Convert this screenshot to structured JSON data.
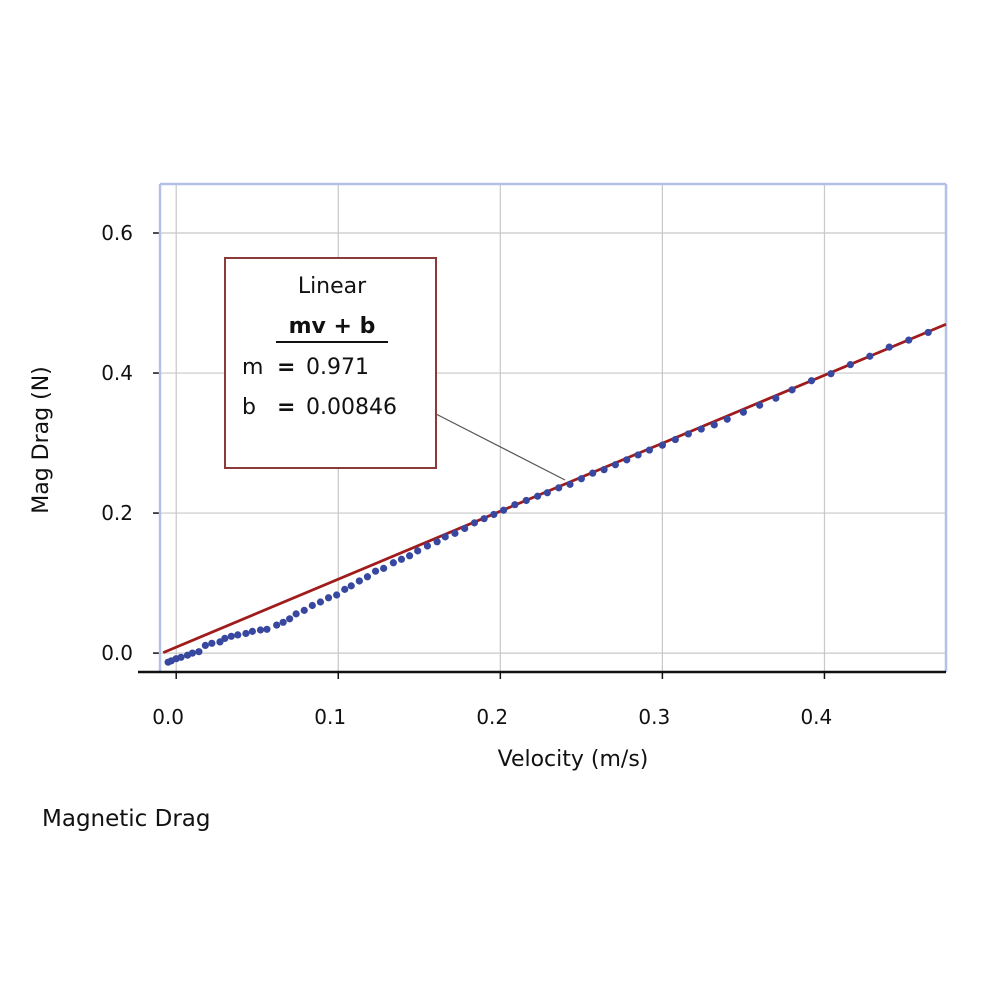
{
  "caption": "Magnetic Drag",
  "chart_data": {
    "type": "scatter",
    "xlabel": "Velocity (m/s)",
    "ylabel": "Mag Drag (N)",
    "xlim": [
      -0.01,
      0.475
    ],
    "ylim": [
      -0.027,
      0.67
    ],
    "xticks": [
      {
        "value": 0.0,
        "label": "0.0"
      },
      {
        "value": 0.1,
        "label": "0.1"
      },
      {
        "value": 0.2,
        "label": "0.2"
      },
      {
        "value": 0.3,
        "label": "0.3"
      },
      {
        "value": 0.4,
        "label": "0.4"
      }
    ],
    "yticks": [
      {
        "value": 0.0,
        "label": "0.0"
      },
      {
        "value": 0.2,
        "label": "0.2"
      },
      {
        "value": 0.4,
        "label": "0.4"
      },
      {
        "value": 0.6,
        "label": "0.6"
      }
    ],
    "grid": true,
    "points": [
      [
        -0.005,
        -0.013
      ],
      [
        -0.003,
        -0.011
      ],
      [
        0.0,
        -0.008
      ],
      [
        0.003,
        -0.006
      ],
      [
        0.007,
        -0.003
      ],
      [
        0.01,
        0.0
      ],
      [
        0.014,
        0.002
      ],
      [
        0.018,
        0.011
      ],
      [
        0.022,
        0.014
      ],
      [
        0.027,
        0.016
      ],
      [
        0.03,
        0.021
      ],
      [
        0.034,
        0.024
      ],
      [
        0.038,
        0.026
      ],
      [
        0.043,
        0.028
      ],
      [
        0.047,
        0.031
      ],
      [
        0.052,
        0.033
      ],
      [
        0.056,
        0.034
      ],
      [
        0.062,
        0.04
      ],
      [
        0.066,
        0.044
      ],
      [
        0.07,
        0.049
      ],
      [
        0.074,
        0.056
      ],
      [
        0.079,
        0.061
      ],
      [
        0.084,
        0.068
      ],
      [
        0.089,
        0.073
      ],
      [
        0.094,
        0.079
      ],
      [
        0.099,
        0.083
      ],
      [
        0.104,
        0.091
      ],
      [
        0.108,
        0.096
      ],
      [
        0.113,
        0.103
      ],
      [
        0.118,
        0.109
      ],
      [
        0.123,
        0.117
      ],
      [
        0.128,
        0.121
      ],
      [
        0.134,
        0.129
      ],
      [
        0.139,
        0.134
      ],
      [
        0.144,
        0.139
      ],
      [
        0.149,
        0.146
      ],
      [
        0.155,
        0.153
      ],
      [
        0.161,
        0.159
      ],
      [
        0.166,
        0.166
      ],
      [
        0.172,
        0.171
      ],
      [
        0.178,
        0.178
      ],
      [
        0.184,
        0.186
      ],
      [
        0.19,
        0.192
      ],
      [
        0.196,
        0.198
      ],
      [
        0.202,
        0.204
      ],
      [
        0.209,
        0.212
      ],
      [
        0.216,
        0.218
      ],
      [
        0.223,
        0.224
      ],
      [
        0.229,
        0.229
      ],
      [
        0.236,
        0.236
      ],
      [
        0.243,
        0.241
      ],
      [
        0.25,
        0.249
      ],
      [
        0.257,
        0.257
      ],
      [
        0.264,
        0.262
      ],
      [
        0.271,
        0.269
      ],
      [
        0.278,
        0.276
      ],
      [
        0.285,
        0.283
      ],
      [
        0.292,
        0.29
      ],
      [
        0.3,
        0.297
      ],
      [
        0.308,
        0.305
      ],
      [
        0.316,
        0.313
      ],
      [
        0.324,
        0.32
      ],
      [
        0.332,
        0.326
      ],
      [
        0.34,
        0.334
      ],
      [
        0.35,
        0.344
      ],
      [
        0.36,
        0.354
      ],
      [
        0.37,
        0.364
      ],
      [
        0.38,
        0.376
      ],
      [
        0.392,
        0.389
      ],
      [
        0.404,
        0.399
      ],
      [
        0.416,
        0.412
      ],
      [
        0.428,
        0.424
      ],
      [
        0.44,
        0.437
      ],
      [
        0.452,
        0.447
      ],
      [
        0.464,
        0.458
      ]
    ],
    "fit": {
      "name": "Linear",
      "equation": "mv + b",
      "m_label": "m",
      "m_value": "0.971",
      "b_label": "b",
      "b_value": "0.00846",
      "m": 0.971,
      "b": 0.00846
    },
    "colors": {
      "points": "#3848a0",
      "fit_line": "#a01c1c",
      "grid": "#c8c8c8",
      "frame": "#b4c0e8",
      "annotation_border": "#8b3a3a"
    }
  }
}
